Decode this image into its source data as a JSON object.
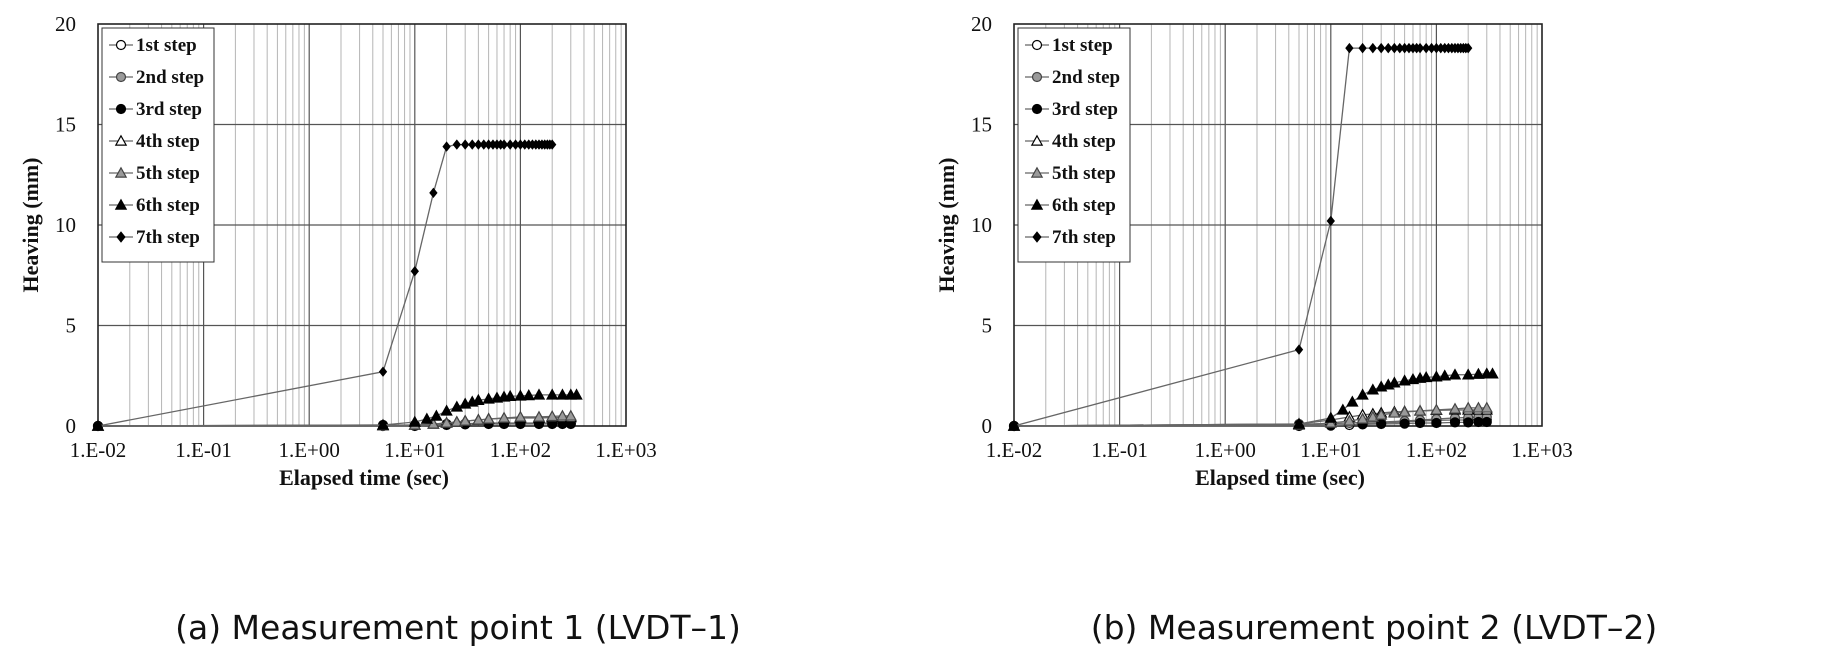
{
  "chart_data": [
    {
      "type": "scatter",
      "caption": "(a) Measurement point 1 (LVDT–1)",
      "xlabel": "Elapsed time (sec)",
      "ylabel": "Heaving (mm)",
      "xscale": "log",
      "xlim": [
        0.01,
        1000
      ],
      "ylim": [
        0,
        20
      ],
      "grid": true,
      "legend_position": "top-left",
      "x_ticks": [
        "1.E-02",
        "1.E-01",
        "1.E+00",
        "1.E+01",
        "1.E+02",
        "1.E+03"
      ],
      "y_ticks": [
        "0",
        "5",
        "10",
        "15",
        "20"
      ],
      "series": [
        {
          "name": "1st step",
          "marker": "circle-open",
          "color": "#333333",
          "x": [
            0.01,
            5,
            10,
            20,
            30,
            50,
            70,
            100,
            150,
            200,
            250,
            300
          ],
          "y": [
            0,
            0,
            0,
            0.05,
            0.08,
            0.1,
            0.1,
            0.1,
            0.1,
            0.1,
            0.1,
            0.1
          ]
        },
        {
          "name": "2nd step",
          "marker": "circle-gray",
          "color": "#555555",
          "x": [
            0.01,
            5,
            10,
            20,
            30,
            50,
            70,
            100,
            150,
            200,
            250,
            300
          ],
          "y": [
            0,
            0,
            0.05,
            0.1,
            0.12,
            0.15,
            0.15,
            0.15,
            0.15,
            0.15,
            0.15,
            0.15
          ]
        },
        {
          "name": "3rd step",
          "marker": "circle-filled",
          "color": "#000000",
          "x": [
            0.01,
            5,
            10,
            20,
            30,
            50,
            70,
            100,
            150,
            200,
            250,
            300
          ],
          "y": [
            0,
            0.05,
            0.05,
            0.08,
            0.1,
            0.12,
            0.12,
            0.12,
            0.12,
            0.12,
            0.12,
            0.12
          ]
        },
        {
          "name": "4th step",
          "marker": "triangle-open",
          "color": "#333333",
          "x": [
            0.01,
            5,
            10,
            15,
            20,
            25,
            30,
            40,
            50,
            70,
            100,
            150,
            200,
            250,
            300
          ],
          "y": [
            0,
            0.02,
            0.05,
            0.1,
            0.15,
            0.2,
            0.25,
            0.3,
            0.35,
            0.38,
            0.4,
            0.4,
            0.42,
            0.42,
            0.42
          ]
        },
        {
          "name": "5th step",
          "marker": "triangle-gray",
          "color": "#555555",
          "x": [
            0.01,
            5,
            10,
            15,
            20,
            25,
            30,
            40,
            50,
            70,
            100,
            150,
            200,
            250,
            300
          ],
          "y": [
            0,
            0.02,
            0.05,
            0.1,
            0.15,
            0.2,
            0.25,
            0.3,
            0.35,
            0.4,
            0.45,
            0.45,
            0.48,
            0.5,
            0.5
          ]
        },
        {
          "name": "6th step",
          "marker": "triangle-filled",
          "color": "#000000",
          "x": [
            0.01,
            5,
            10,
            13,
            16,
            20,
            25,
            30,
            35,
            40,
            50,
            60,
            70,
            80,
            100,
            120,
            150,
            200,
            250,
            300,
            340
          ],
          "y": [
            0,
            0.05,
            0.2,
            0.35,
            0.5,
            0.75,
            0.95,
            1.1,
            1.2,
            1.28,
            1.35,
            1.4,
            1.45,
            1.48,
            1.5,
            1.52,
            1.55,
            1.55,
            1.55,
            1.55,
            1.55
          ]
        },
        {
          "name": "7th step",
          "marker": "diamond-filled",
          "color": "#000000",
          "x": [
            0.01,
            5,
            10,
            15,
            20,
            25,
            30,
            35,
            40,
            45,
            50,
            55,
            60,
            65,
            70,
            80,
            90,
            100,
            110,
            120,
            130,
            140,
            150,
            160,
            170,
            180,
            190,
            200
          ],
          "y": [
            0,
            2.7,
            7.7,
            11.6,
            13.9,
            14,
            14,
            14,
            14,
            14,
            14,
            14,
            14,
            14,
            14,
            14,
            14,
            14,
            14,
            14,
            14,
            14,
            14,
            14,
            14,
            14,
            14,
            14
          ]
        }
      ]
    },
    {
      "type": "scatter",
      "caption": "(b) Measurement point 2 (LVDT–2)",
      "xlabel": "Elapsed time (sec)",
      "ylabel": "Heaving (mm)",
      "xscale": "log",
      "xlim": [
        0.01,
        1000
      ],
      "ylim": [
        0,
        20
      ],
      "grid": true,
      "legend_position": "top-left",
      "x_ticks": [
        "1.E-02",
        "1.E-01",
        "1.E+00",
        "1.E+01",
        "1.E+02",
        "1.E+03"
      ],
      "y_ticks": [
        "0",
        "5",
        "10",
        "15",
        "20"
      ],
      "series": [
        {
          "name": "1st step",
          "marker": "circle-open",
          "color": "#333333",
          "x": [
            0.01,
            5,
            10,
            15,
            20,
            30,
            50,
            70,
            100,
            150,
            200,
            250,
            300
          ],
          "y": [
            0,
            0,
            0.02,
            0.05,
            0.1,
            0.15,
            0.2,
            0.25,
            0.28,
            0.3,
            0.3,
            0.32,
            0.32
          ]
        },
        {
          "name": "2nd step",
          "marker": "circle-gray",
          "color": "#555555",
          "x": [
            0.01,
            5,
            10,
            15,
            20,
            30,
            50,
            70,
            100,
            150,
            200,
            250,
            300
          ],
          "y": [
            0,
            0.1,
            0.12,
            0.15,
            0.18,
            0.2,
            0.25,
            0.3,
            0.35,
            0.4,
            0.42,
            0.45,
            0.45
          ]
        },
        {
          "name": "3rd step",
          "marker": "circle-filled",
          "color": "#000000",
          "x": [
            0.01,
            5,
            10,
            20,
            30,
            50,
            70,
            100,
            150,
            200,
            250,
            300
          ],
          "y": [
            0,
            0.05,
            0.05,
            0.08,
            0.1,
            0.12,
            0.15,
            0.15,
            0.18,
            0.18,
            0.2,
            0.2
          ]
        },
        {
          "name": "4th step",
          "marker": "triangle-open",
          "color": "#333333",
          "x": [
            0.01,
            5,
            10,
            15,
            20,
            25,
            30,
            40,
            50,
            70,
            100,
            150,
            200,
            250,
            300
          ],
          "y": [
            0,
            0.1,
            0.3,
            0.45,
            0.55,
            0.6,
            0.65,
            0.7,
            0.72,
            0.75,
            0.78,
            0.8,
            0.8,
            0.8,
            0.8
          ]
        },
        {
          "name": "5th step",
          "marker": "triangle-gray",
          "color": "#555555",
          "x": [
            0.01,
            5,
            10,
            15,
            20,
            25,
            30,
            40,
            50,
            70,
            100,
            150,
            200,
            250,
            300
          ],
          "y": [
            0,
            0.05,
            0.15,
            0.25,
            0.35,
            0.45,
            0.55,
            0.65,
            0.7,
            0.75,
            0.8,
            0.85,
            0.9,
            0.9,
            0.9
          ]
        },
        {
          "name": "6th step",
          "marker": "triangle-filled",
          "color": "#000000",
          "x": [
            0.01,
            5,
            10,
            13,
            16,
            20,
            25,
            30,
            35,
            40,
            50,
            60,
            70,
            80,
            100,
            120,
            150,
            200,
            250,
            300,
            340
          ],
          "y": [
            0,
            0.1,
            0.4,
            0.8,
            1.2,
            1.55,
            1.8,
            1.95,
            2.05,
            2.15,
            2.25,
            2.32,
            2.38,
            2.42,
            2.45,
            2.5,
            2.55,
            2.55,
            2.58,
            2.6,
            2.6
          ]
        },
        {
          "name": "7th step",
          "marker": "diamond-filled",
          "color": "#000000",
          "x": [
            0.01,
            5,
            10,
            15,
            20,
            25,
            30,
            35,
            40,
            45,
            50,
            55,
            60,
            65,
            70,
            80,
            90,
            100,
            110,
            120,
            130,
            140,
            150,
            160,
            170,
            180,
            190,
            200
          ],
          "y": [
            0,
            3.8,
            10.2,
            18.8,
            18.8,
            18.8,
            18.8,
            18.8,
            18.8,
            18.8,
            18.8,
            18.8,
            18.8,
            18.8,
            18.8,
            18.8,
            18.8,
            18.8,
            18.8,
            18.8,
            18.8,
            18.8,
            18.8,
            18.8,
            18.8,
            18.8,
            18.8,
            18.8
          ]
        }
      ]
    }
  ]
}
